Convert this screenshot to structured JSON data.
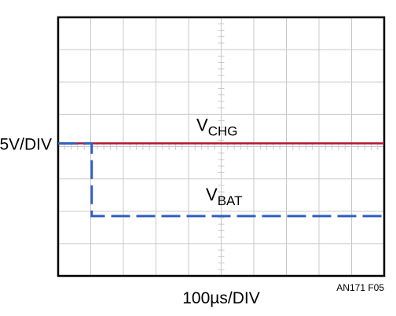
{
  "chart_data": {
    "type": "line",
    "title": "",
    "divisions": {
      "x": 10,
      "y": 8
    },
    "minor_ticks_per_division": 5,
    "ylabel": "5V/DIV",
    "xlabel": "100µs/DIV",
    "figure_id": "AN171 F05",
    "x_unit": "div",
    "y_unit": "div",
    "grid": true,
    "series": [
      {
        "label_main": "V",
        "label_sub": "CHG",
        "color": "#b5152b",
        "style": "solid",
        "points": [
          [
            0,
            4.1
          ],
          [
            10,
            4.1
          ]
        ]
      },
      {
        "label_main": "V",
        "label_sub": "BAT",
        "color": "#2f5fc0",
        "style": "dashed",
        "points": [
          [
            0,
            4.1
          ],
          [
            1.03,
            4.1
          ],
          [
            1.03,
            1.85
          ],
          [
            10,
            1.85
          ]
        ]
      }
    ]
  }
}
